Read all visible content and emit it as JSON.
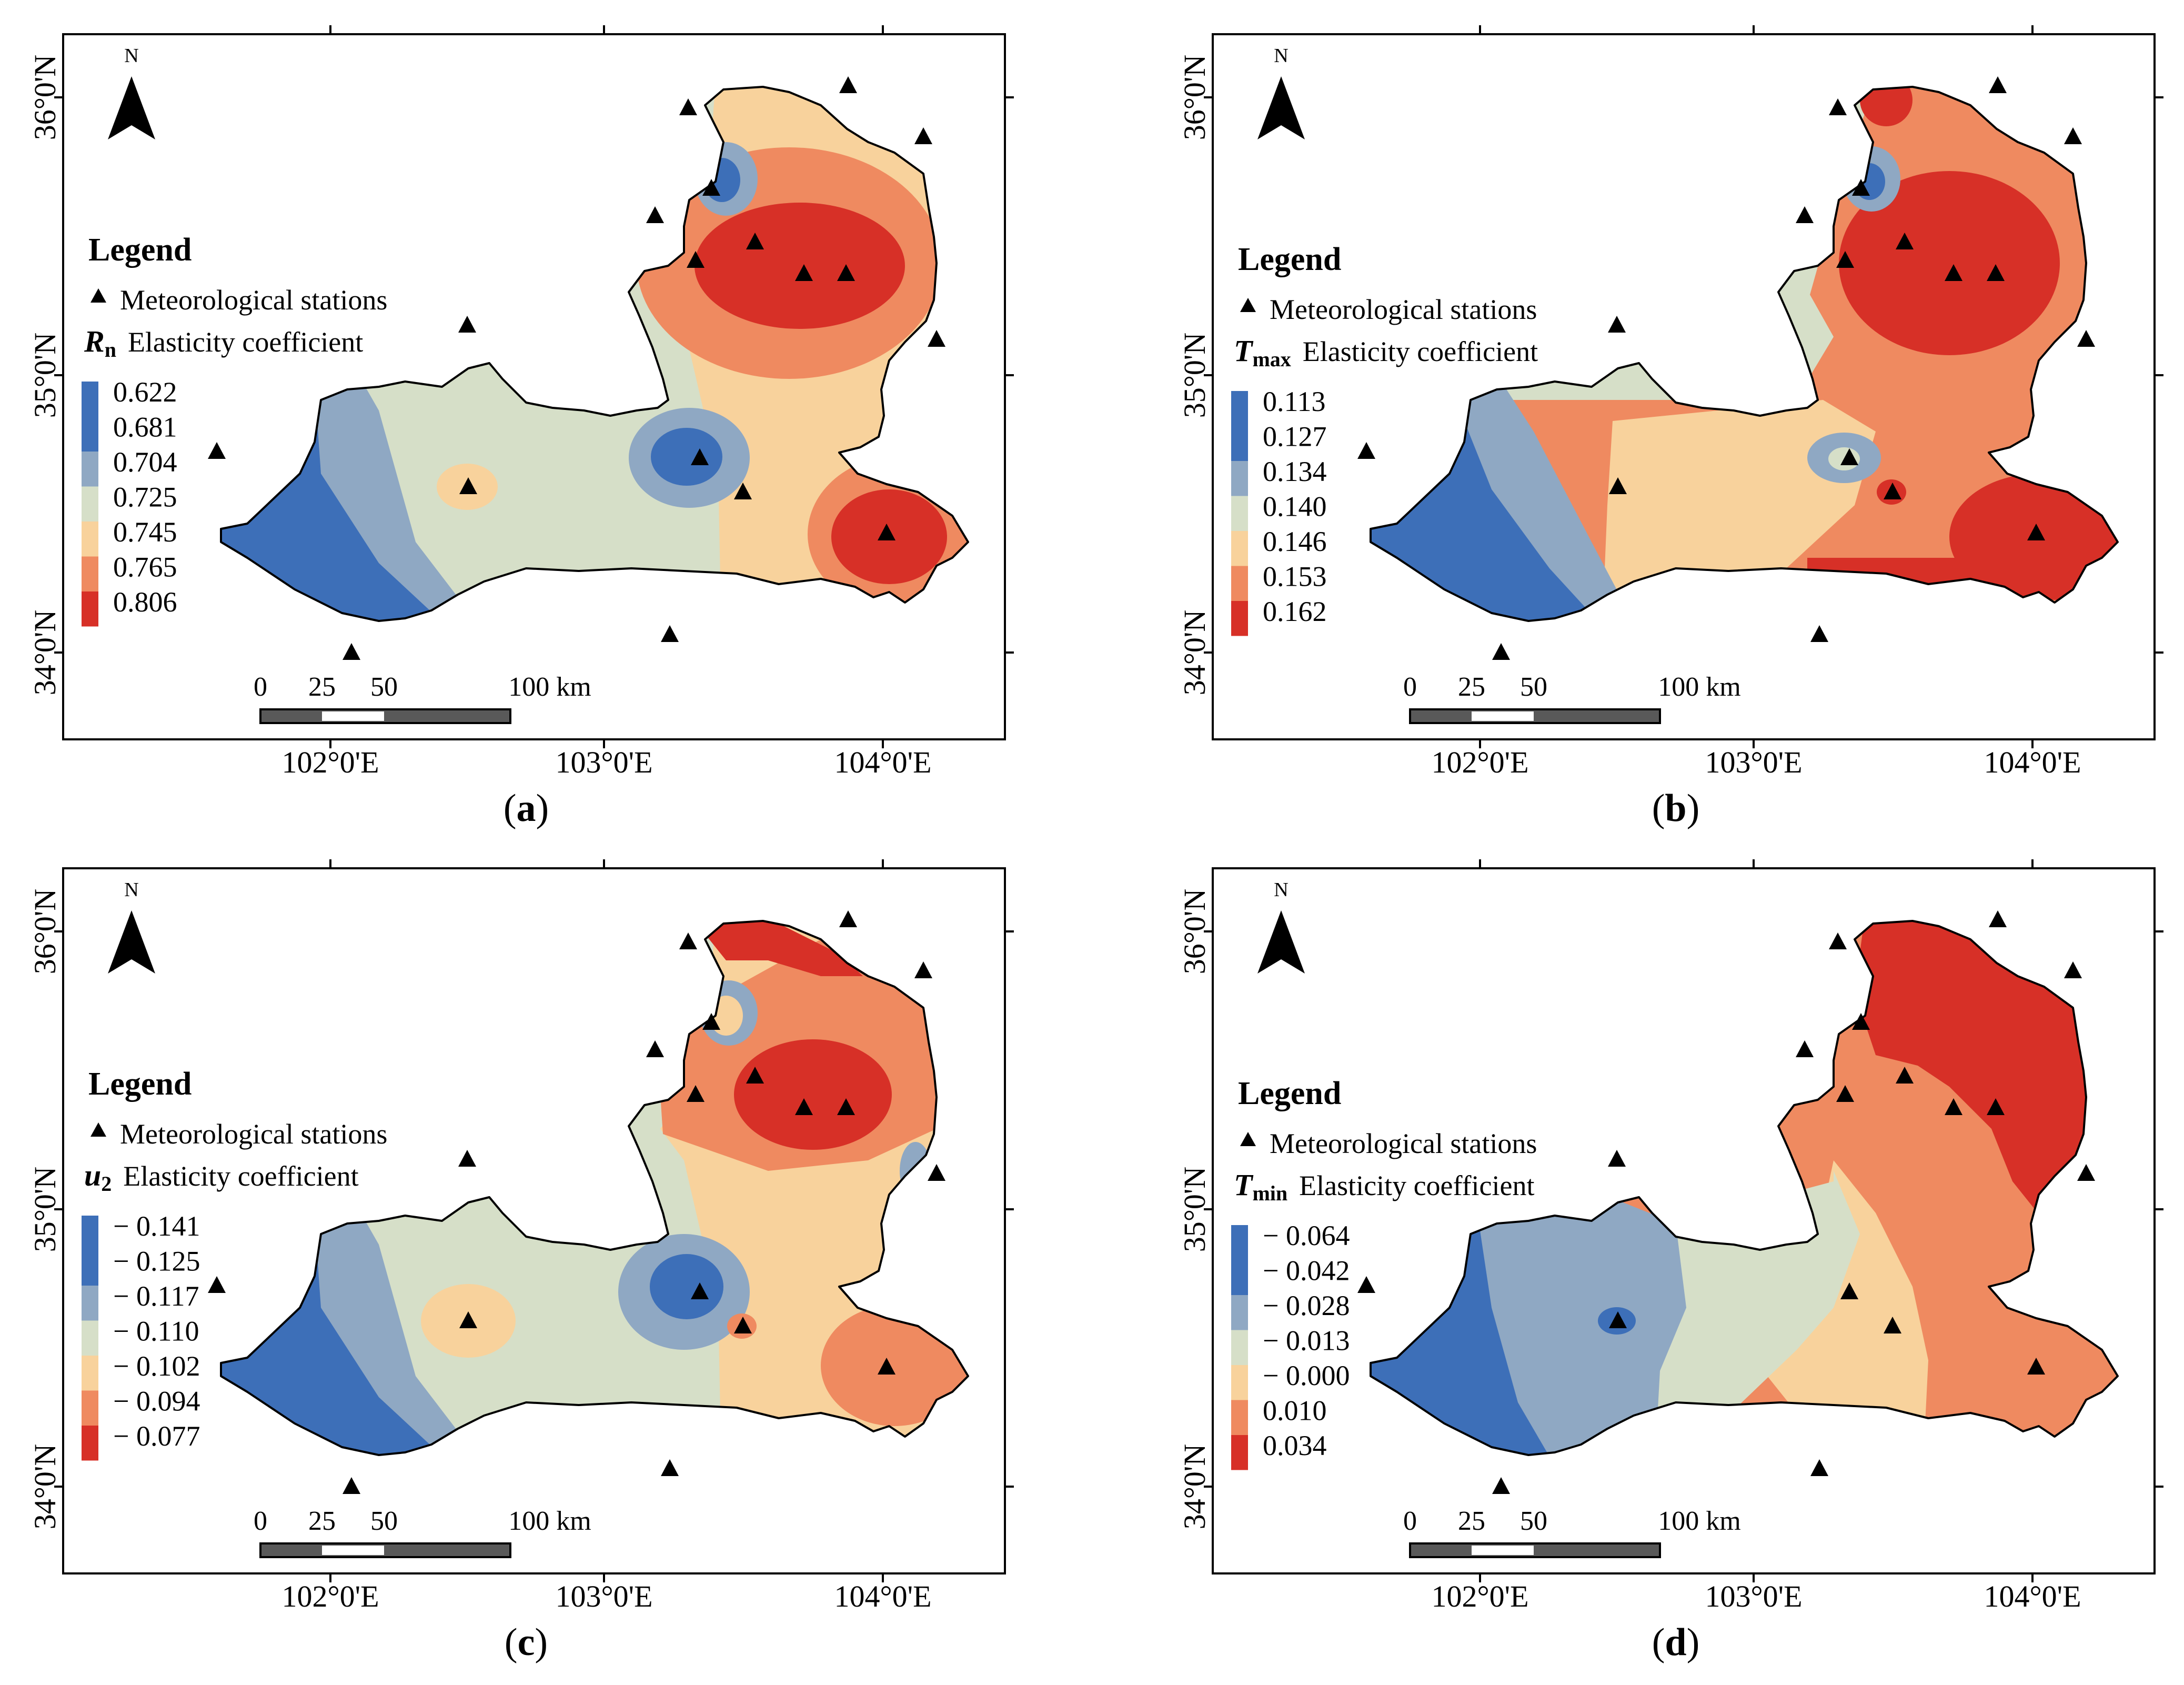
{
  "legend_title": "Legend",
  "station_label": "Meteorological stations",
  "north_label": "N",
  "scale": {
    "labels": [
      "0",
      "25",
      "50",
      "100 km"
    ]
  },
  "lon_ticks": [
    "102°0'E",
    "103°0'E",
    "104°0'E"
  ],
  "lat_ticks": [
    "34°0'N",
    "35°0'N",
    "36°0'N"
  ],
  "colors": [
    "#3d6fb8",
    "#8fa8c3",
    "#d6dfc8",
    "#f8d29c",
    "#ef8a60",
    "#d73027"
  ],
  "panels": [
    {
      "caption": "(a)",
      "var_symbol": "R",
      "var_sub": "n",
      "elasticity_label": "Elasticity coefficient",
      "classes": [
        "0.622",
        "0.681",
        "0.704",
        "0.725",
        "0.745",
        "0.765",
        "0.806"
      ]
    },
    {
      "caption": "(b)",
      "var_symbol": "T",
      "var_sub": "max",
      "elasticity_label": "Elasticity coefficient",
      "classes": [
        "0.113",
        "0.127",
        "0.134",
        "0.140",
        "0.146",
        "0.153",
        "0.162"
      ]
    },
    {
      "caption": "(c)",
      "var_symbol": "u",
      "var_sub": "2",
      "elasticity_label": "Elasticity coefficient",
      "classes": [
        "− 0.141",
        "− 0.125",
        "− 0.117",
        "− 0.110",
        "− 0.102",
        "− 0.094",
        "− 0.077"
      ]
    },
    {
      "caption": "(d)",
      "var_symbol": "T",
      "var_sub": "min",
      "elasticity_label": "Elasticity coefficient",
      "classes": [
        "− 0.064",
        "− 0.042",
        "− 0.028",
        "− 0.013",
        "− 0.000",
        "0.010",
        "0.034"
      ]
    }
  ]
}
